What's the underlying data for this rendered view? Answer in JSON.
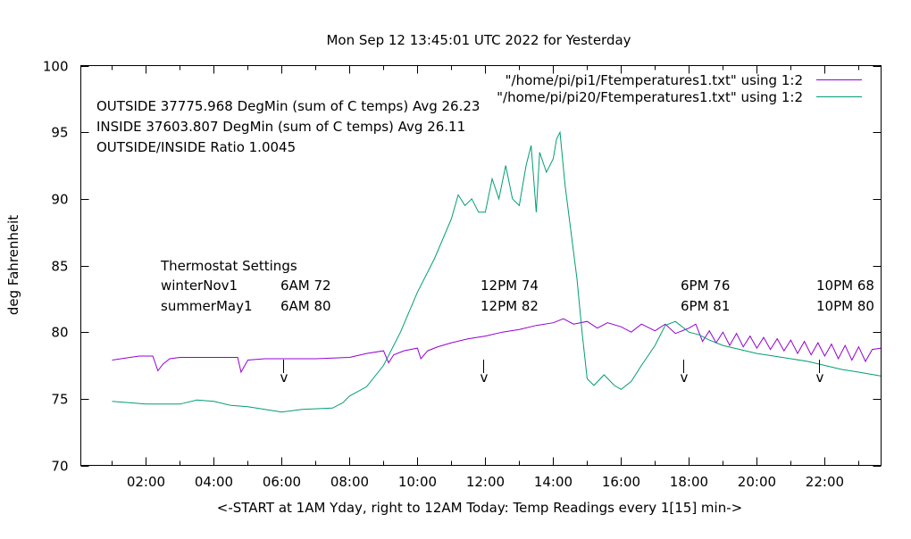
{
  "chart_data": {
    "type": "line",
    "title": "Mon Sep 12 13:45:01 UTC 2022 for Yesterday",
    "xlabel": "<-START at 1AM Yday, right to 12AM Today:  Temp Readings every 1[15] min->",
    "ylabel": "deg Fahrenheit",
    "xlim": [
      0.08,
      23.66
    ],
    "ylim": [
      70,
      100
    ],
    "yticks": [
      70,
      75,
      80,
      85,
      90,
      95,
      100
    ],
    "xticks": [
      {
        "v": 2,
        "label": "02:00"
      },
      {
        "v": 4,
        "label": "04:00"
      },
      {
        "v": 6,
        "label": "06:00"
      },
      {
        "v": 8,
        "label": "08:00"
      },
      {
        "v": 10,
        "label": "10:00"
      },
      {
        "v": 12,
        "label": "12:00"
      },
      {
        "v": 14,
        "label": "14:00"
      },
      {
        "v": 16,
        "label": "16:00"
      },
      {
        "v": 18,
        "label": "18:00"
      },
      {
        "v": 20,
        "label": "20:00"
      },
      {
        "v": 22,
        "label": "22:00"
      }
    ],
    "grid": false,
    "legend_position": "top-right",
    "series": [
      {
        "name": "\"/home/pi/pi1/Ftemperatures1.txt\" using 1:2",
        "color": "#9400d3",
        "x": [
          1.0,
          1.8,
          2.2,
          2.35,
          2.5,
          2.7,
          3.0,
          4.5,
          4.7,
          4.8,
          5.0,
          5.5,
          6,
          7,
          8,
          8.5,
          9.0,
          9.15,
          9.3,
          9.6,
          10,
          10.1,
          10.3,
          10.6,
          11,
          11.5,
          12,
          12.5,
          13,
          13.5,
          14,
          14.3,
          14.6,
          15,
          15.3,
          15.6,
          16,
          16.3,
          16.6,
          17,
          17.3,
          17.6,
          18,
          18.2,
          18.4,
          18.6,
          18.8,
          19.0,
          19.2,
          19.4,
          19.6,
          19.8,
          20.0,
          20.2,
          20.4,
          20.6,
          20.8,
          21.0,
          21.2,
          21.4,
          21.6,
          21.8,
          22.0,
          22.2,
          22.4,
          22.6,
          22.8,
          23.0,
          23.2,
          23.4,
          23.66
        ],
        "y": [
          77.9,
          78.2,
          78.2,
          77.1,
          77.6,
          78.0,
          78.1,
          78.1,
          78.1,
          77.0,
          77.9,
          78.0,
          78.0,
          78.0,
          78.1,
          78.4,
          78.6,
          77.7,
          78.3,
          78.6,
          78.8,
          78.0,
          78.6,
          78.9,
          79.2,
          79.5,
          79.7,
          80.0,
          80.2,
          80.5,
          80.7,
          81.0,
          80.6,
          80.8,
          80.3,
          80.7,
          80.4,
          80.0,
          80.6,
          80.1,
          80.6,
          79.9,
          80.3,
          80.6,
          79.3,
          80.1,
          79.2,
          80.0,
          79.0,
          79.9,
          78.9,
          79.7,
          78.8,
          79.6,
          78.7,
          79.5,
          78.6,
          79.4,
          78.4,
          79.3,
          78.3,
          79.2,
          78.2,
          79.1,
          78.0,
          79.0,
          77.9,
          78.9,
          77.8,
          78.7,
          78.8
        ]
      },
      {
        "name": "\"/home/pi/pi20/Ftemperatures1.txt\" using 1:2",
        "color": "#009e73",
        "x": [
          1.0,
          2.0,
          3.0,
          3.5,
          4.0,
          4.5,
          5.0,
          5.5,
          6.0,
          6.3,
          6.6,
          7.5,
          7.8,
          8.0,
          8.5,
          9.0,
          9.5,
          10.0,
          10.5,
          11.0,
          11.2,
          11.4,
          11.6,
          11.8,
          12.0,
          12.2,
          12.4,
          12.6,
          12.8,
          13.0,
          13.2,
          13.35,
          13.5,
          13.6,
          13.8,
          14.0,
          14.1,
          14.2,
          14.35,
          14.5,
          14.7,
          14.85,
          15.0,
          15.2,
          15.5,
          15.8,
          16.0,
          16.3,
          16.6,
          17.0,
          17.3,
          17.6,
          18.0,
          18.3,
          18.6,
          19.0,
          19.5,
          20.0,
          20.5,
          21.0,
          21.5,
          22.0,
          22.5,
          23.0,
          23.66
        ],
        "y": [
          74.8,
          74.6,
          74.6,
          74.9,
          74.8,
          74.5,
          74.4,
          74.2,
          74.0,
          74.1,
          74.2,
          74.3,
          74.7,
          75.2,
          75.9,
          77.5,
          80.0,
          83.0,
          85.5,
          88.5,
          90.3,
          89.5,
          90.0,
          89.0,
          89.0,
          91.5,
          90.0,
          92.5,
          90.0,
          89.5,
          92.5,
          94.0,
          89.0,
          93.5,
          92.0,
          93.0,
          94.5,
          95.0,
          91.0,
          88.0,
          84.0,
          80.0,
          76.5,
          76.0,
          76.8,
          76.0,
          75.7,
          76.3,
          77.5,
          79.0,
          80.5,
          80.8,
          80.0,
          79.8,
          79.4,
          79.0,
          78.7,
          78.4,
          78.2,
          78.0,
          77.8,
          77.5,
          77.2,
          77.0,
          76.7
        ]
      }
    ],
    "annotations": {
      "stats": [
        "OUTSIDE 37775.968 DegMin (sum of C temps) Avg 26.23",
        "INSIDE 37603.807 DegMin (sum of C temps) Avg 26.11",
        "OUTSIDE/INSIDE Ratio 1.0045"
      ],
      "thermostat_title": "Thermostat Settings",
      "winter_label": "winterNov1",
      "summer_label": "summerMay1",
      "winter": [
        "6AM 72",
        "12PM 74",
        "6PM 76",
        "10PM 68"
      ],
      "summer": [
        "6AM 80",
        "12PM 82",
        "6PM 81",
        "10PM 80"
      ],
      "marker": "v"
    }
  }
}
